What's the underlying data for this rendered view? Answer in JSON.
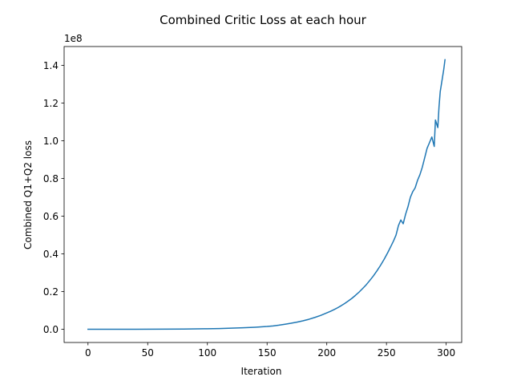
{
  "chart_data": {
    "type": "line",
    "title": "Combined Critic Loss at each hour",
    "xlabel": "Iteration",
    "ylabel": "Combined Q1+Q2 loss",
    "offset_text": "1e8",
    "y_scale_factor": 100000000,
    "xlim": [
      -20,
      313
    ],
    "ylim": [
      -7000000,
      150000000
    ],
    "xticks": [
      0,
      50,
      100,
      150,
      200,
      250,
      300
    ],
    "yticks": [
      0,
      20000000,
      40000000,
      60000000,
      80000000,
      100000000,
      120000000,
      140000000
    ],
    "ytick_labels": [
      "0.0",
      "0.2",
      "0.4",
      "0.6",
      "0.8",
      "1.0",
      "1.2",
      "1.4"
    ],
    "grid": false,
    "legend": "none",
    "line_color": "#1f77b4",
    "series": [
      {
        "x": [
          0,
          20,
          40,
          60,
          80,
          100,
          110,
          120,
          130,
          140,
          150,
          155,
          160,
          165,
          170,
          175,
          180,
          185,
          190,
          195,
          200,
          203,
          206,
          209,
          212,
          215,
          218,
          221,
          224,
          227,
          230,
          233,
          236,
          239,
          242,
          245,
          248,
          251,
          254,
          256,
          258,
          260,
          262,
          264,
          266,
          268,
          270,
          272,
          274,
          276,
          278,
          280,
          282,
          284,
          286,
          288,
          290,
          291,
          292,
          293,
          294,
          295,
          296,
          297,
          298,
          299
        ],
        "y": [
          0,
          0,
          0,
          50000,
          150000,
          300000,
          400000,
          600000,
          800000,
          1100000,
          1500000,
          1800000,
          2200000,
          2700000,
          3200000,
          3800000,
          4500000,
          5300000,
          6300000,
          7400000,
          8700000,
          9500000,
          10400000,
          11400000,
          12500000,
          13700000,
          15000000,
          16400000,
          18000000,
          19700000,
          21600000,
          23600000,
          25900000,
          28300000,
          31000000,
          33900000,
          37100000,
          40600000,
          44400000,
          47000000,
          50000000,
          55000000,
          58000000,
          56000000,
          61000000,
          65000000,
          70000000,
          73000000,
          75000000,
          79000000,
          82000000,
          86000000,
          91000000,
          96000000,
          99000000,
          102000000,
          97000000,
          111000000,
          109000000,
          107000000,
          118000000,
          126000000,
          130000000,
          134000000,
          138000000,
          143000000
        ]
      }
    ]
  }
}
